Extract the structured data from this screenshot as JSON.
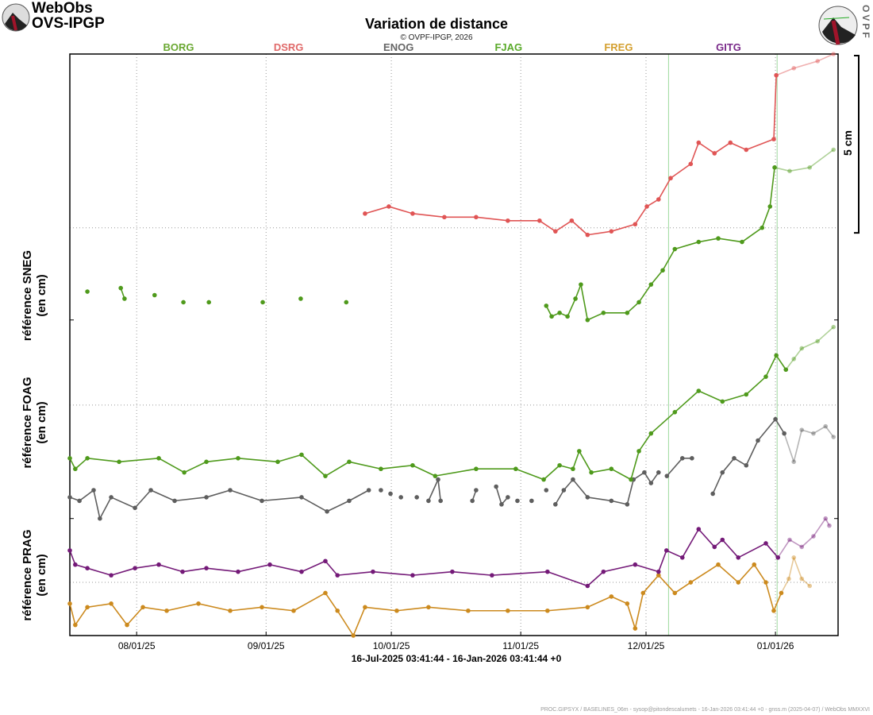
{
  "header": {
    "brand_line1": "WebObs",
    "brand_line2": "OVS-IPGP",
    "title": "Variation de distance",
    "copyright": "© OVPF-IPGP, 2026",
    "logo_right_text": "OVPF"
  },
  "footer": "PROC.GIPSYX / BASELINES_06m - sysop@pitondescalumets - 16-Jan-2026 03:41:44 +0 - gnss.m (2025-04-07) / WebObs MMXXVI",
  "chart_data": {
    "type": "line",
    "title": "Variation de distance",
    "xlabel": "16-Jul-2025 03:41:44 - 16-Jan-2026 03:41:44 +0",
    "x_units": "days since 16-Jul-2025",
    "xlim": [
      0,
      184
    ],
    "ylim": [
      0,
      16.4
    ],
    "y_units": "cm",
    "grid": true,
    "scale_bar": {
      "label": "5 cm",
      "value": 5
    },
    "x_ticks": [
      {
        "day": 16,
        "label": "08/01/25"
      },
      {
        "day": 47,
        "label": "09/01/25"
      },
      {
        "day": 77,
        "label": "10/01/25"
      },
      {
        "day": 108,
        "label": "11/01/25"
      },
      {
        "day": 138,
        "label": "12/01/25"
      },
      {
        "day": 169,
        "label": "01/01/26"
      }
    ],
    "event_lines_days": [
      143.4,
      169.4
    ],
    "y_grid_cm": [
      1.5,
      6.5,
      11.5,
      16.4
    ],
    "y_panel_ticks_cm": [
      3.3,
      8.9
    ],
    "panel_labels": [
      {
        "line1": "référence SNEG",
        "line2": "(en cm)",
        "center_cm": 9.6
      },
      {
        "line1": "référence FOAG",
        "line2": "(en cm)",
        "center_cm": 6.0
      },
      {
        "line1": "référence PRAG",
        "line2": "(en cm)",
        "center_cm": 1.7
      }
    ],
    "recent_from_day": 172,
    "series": [
      {
        "name": "BORG",
        "color": "#4f9a1c",
        "label_color": "#6aa832",
        "points": [
          [
            4.2,
            9.7
          ],
          null,
          [
            12.2,
            9.8
          ],
          [
            13.1,
            9.5
          ],
          null,
          [
            20.3,
            9.6
          ],
          null,
          [
            27.2,
            9.4
          ],
          null,
          [
            33.3,
            9.4
          ],
          null,
          [
            46.2,
            9.4
          ],
          null,
          [
            55.3,
            9.5
          ],
          null,
          [
            66.2,
            9.4
          ],
          null,
          [
            114.1,
            9.3
          ],
          [
            115.4,
            9.0
          ],
          [
            117.3,
            9.1
          ],
          [
            119.2,
            9.0
          ],
          [
            121.1,
            9.5
          ],
          [
            122.4,
            9.9
          ],
          [
            124,
            8.9
          ],
          [
            127.8,
            9.1
          ],
          [
            133.5,
            9.1
          ],
          [
            136.3,
            9.4
          ],
          [
            139.2,
            9.9
          ],
          [
            142,
            10.3
          ],
          [
            144.9,
            10.9
          ],
          [
            150.6,
            11.1
          ],
          [
            155.3,
            11.2
          ],
          [
            161,
            11.1
          ],
          [
            165.8,
            11.5
          ],
          [
            167.7,
            12.1
          ],
          [
            168.8,
            13.2
          ],
          [
            172.4,
            13.1
          ],
          [
            177.2,
            13.2
          ],
          [
            182.9,
            13.7
          ]
        ]
      },
      {
        "name": "DSRG",
        "color": "#e05555",
        "label_color": "#e06a6a",
        "points": [
          [
            70.7,
            11.9
          ],
          [
            76.4,
            12.1
          ],
          [
            82.1,
            11.9
          ],
          [
            89.7,
            11.8
          ],
          [
            97.3,
            11.8
          ],
          [
            104.9,
            11.7
          ],
          [
            112.5,
            11.7
          ],
          [
            116.3,
            11.4
          ],
          [
            120.2,
            11.7
          ],
          [
            124,
            11.3
          ],
          [
            129.7,
            11.4
          ],
          [
            135.4,
            11.6
          ],
          [
            138.2,
            12.1
          ],
          [
            141,
            12.3
          ],
          [
            143.9,
            12.9
          ],
          [
            148.7,
            13.3
          ],
          [
            150.6,
            13.9
          ],
          [
            154.4,
            13.6
          ],
          [
            158.2,
            13.9
          ],
          [
            162,
            13.7
          ],
          [
            168.6,
            14.0
          ],
          [
            169.2,
            15.8
          ],
          [
            173.4,
            16.0
          ],
          [
            179.1,
            16.2
          ],
          [
            182.9,
            16.4
          ]
        ]
      },
      {
        "name": "ENOG",
        "color": "#5e5e5e",
        "label_color": "#666666",
        "points": [
          [
            0,
            3.9
          ],
          [
            2.3,
            3.8
          ],
          [
            5.7,
            4.1
          ],
          [
            7.2,
            3.3
          ],
          [
            9.9,
            3.9
          ],
          [
            15.6,
            3.6
          ],
          [
            19.4,
            4.1
          ],
          [
            25.1,
            3.8
          ],
          [
            32.7,
            3.9
          ],
          [
            38.4,
            4.1
          ],
          [
            46,
            3.8
          ],
          [
            55.5,
            3.9
          ],
          [
            61.6,
            3.5
          ],
          [
            66.9,
            3.8
          ],
          [
            71.6,
            4.1
          ],
          null,
          [
            74.5,
            4.1
          ],
          null,
          [
            76.8,
            4.0
          ],
          null,
          [
            79.3,
            3.9
          ],
          null,
          [
            83.1,
            3.9
          ],
          null,
          [
            85.9,
            3.8
          ],
          [
            88.2,
            4.4
          ],
          [
            88.8,
            3.8
          ],
          null,
          [
            96.4,
            3.8
          ],
          [
            97.3,
            4.1
          ],
          null,
          [
            102.1,
            4.2
          ],
          [
            103.4,
            3.7
          ],
          [
            104.9,
            3.9
          ],
          null,
          [
            107.2,
            3.8
          ],
          null,
          [
            110.6,
            3.8
          ],
          null,
          [
            114.1,
            4.1
          ],
          null,
          [
            116.3,
            3.7
          ],
          [
            118.3,
            4.1
          ],
          [
            120.5,
            4.4
          ],
          [
            124,
            3.9
          ],
          [
            129.7,
            3.8
          ],
          [
            133.5,
            3.7
          ],
          [
            135,
            4.4
          ],
          [
            137.6,
            4.6
          ],
          [
            139.2,
            4.3
          ],
          [
            141,
            4.6
          ],
          null,
          [
            143,
            4.5
          ],
          [
            146.7,
            5.0
          ],
          [
            149,
            5.0
          ],
          null,
          [
            154,
            4.0
          ],
          [
            156.3,
            4.6
          ],
          [
            159.1,
            5.0
          ],
          [
            162,
            4.8
          ],
          [
            164.8,
            5.5
          ],
          [
            169,
            6.1
          ],
          [
            171.1,
            5.7
          ],
          [
            173.4,
            4.9
          ],
          [
            175.3,
            5.8
          ],
          [
            178.1,
            5.7
          ],
          [
            181,
            5.9
          ],
          [
            182.9,
            5.6
          ]
        ]
      },
      {
        "name": "FJAG",
        "color": "#4f9a1c",
        "label_color": "#5aaa2a",
        "points": [
          [
            0,
            5.0
          ],
          [
            1.3,
            4.7
          ],
          [
            4.2,
            5.0
          ],
          [
            11.8,
            4.9
          ],
          [
            21.3,
            5.0
          ],
          [
            27.4,
            4.6
          ],
          [
            32.7,
            4.9
          ],
          [
            40.3,
            5.0
          ],
          [
            49.8,
            4.9
          ],
          [
            55.5,
            5.1
          ],
          [
            61.2,
            4.5
          ],
          [
            66.9,
            4.9
          ],
          [
            74.5,
            4.7
          ],
          [
            82.1,
            4.8
          ],
          [
            87.5,
            4.5
          ],
          [
            97.3,
            4.7
          ],
          [
            106.8,
            4.7
          ],
          [
            113.5,
            4.4
          ],
          [
            117.3,
            4.8
          ],
          [
            120.5,
            4.7
          ],
          [
            122,
            5.2
          ],
          [
            124.9,
            4.6
          ],
          [
            129.7,
            4.7
          ],
          [
            134.4,
            4.4
          ],
          [
            136.3,
            5.2
          ],
          [
            139.2,
            5.7
          ],
          [
            144.9,
            6.3
          ],
          [
            150.6,
            6.9
          ],
          [
            156.3,
            6.6
          ],
          [
            162,
            6.8
          ],
          [
            166.7,
            7.3
          ],
          [
            169.2,
            7.9
          ],
          [
            171.5,
            7.5
          ],
          [
            173.4,
            7.8
          ],
          [
            175.3,
            8.1
          ],
          [
            179.1,
            8.3
          ],
          [
            182.9,
            8.7
          ]
        ]
      },
      {
        "name": "FREG",
        "color": "#cc8a1e",
        "label_color": "#d4a030",
        "points": [
          [
            0,
            0.9
          ],
          [
            1.3,
            0.3
          ],
          [
            4.2,
            0.8
          ],
          [
            9.9,
            0.9
          ],
          [
            13.7,
            0.3
          ],
          [
            17.5,
            0.8
          ],
          [
            23.2,
            0.7
          ],
          [
            30.8,
            0.9
          ],
          [
            38.4,
            0.7
          ],
          [
            46,
            0.8
          ],
          [
            53.6,
            0.7
          ],
          [
            61.2,
            1.2
          ],
          [
            64.1,
            0.7
          ],
          [
            67.9,
            0.0
          ],
          [
            70.7,
            0.8
          ],
          [
            78.3,
            0.7
          ],
          [
            85.9,
            0.8
          ],
          [
            95.4,
            0.7
          ],
          [
            104.9,
            0.7
          ],
          [
            114.4,
            0.7
          ],
          [
            124,
            0.8
          ],
          [
            129.7,
            1.1
          ],
          [
            133.5,
            0.9
          ],
          [
            135.4,
            0.2
          ],
          [
            137.3,
            1.2
          ],
          [
            141,
            1.7
          ],
          [
            144.9,
            1.2
          ],
          [
            148.7,
            1.5
          ],
          [
            155.3,
            2.0
          ],
          [
            160.1,
            1.5
          ],
          [
            163.9,
            2.0
          ],
          [
            166.7,
            1.5
          ],
          [
            168.6,
            0.7
          ],
          [
            170.4,
            1.2
          ],
          [
            172.2,
            1.6
          ],
          [
            173.4,
            2.2
          ],
          [
            175.3,
            1.6
          ],
          [
            177.2,
            1.4
          ]
        ]
      },
      {
        "name": "GITG",
        "color": "#741a78",
        "label_color": "#7a2a8a",
        "points": [
          [
            0,
            2.4
          ],
          [
            1.3,
            2.0
          ],
          [
            4.2,
            1.9
          ],
          [
            9.9,
            1.7
          ],
          [
            15.6,
            1.9
          ],
          [
            21.3,
            2.0
          ],
          [
            27,
            1.8
          ],
          [
            32.7,
            1.9
          ],
          [
            40.3,
            1.8
          ],
          [
            47.9,
            2.0
          ],
          [
            55.5,
            1.8
          ],
          [
            61.2,
            2.1
          ],
          [
            64.1,
            1.7
          ],
          [
            72.6,
            1.8
          ],
          [
            82.1,
            1.7
          ],
          [
            91.6,
            1.8
          ],
          [
            101.1,
            1.7
          ],
          [
            114.4,
            1.8
          ],
          [
            124,
            1.4
          ],
          [
            127.8,
            1.8
          ],
          [
            135.4,
            2.0
          ],
          [
            141,
            1.8
          ],
          [
            142.9,
            2.4
          ],
          [
            146.7,
            2.2
          ],
          [
            150.6,
            3.0
          ],
          [
            154.4,
            2.5
          ],
          [
            156.3,
            2.7
          ],
          [
            160.1,
            2.2
          ],
          [
            166.7,
            2.6
          ],
          [
            169.6,
            2.2
          ],
          [
            172.4,
            2.7
          ],
          [
            175.3,
            2.5
          ],
          [
            178.1,
            2.8
          ],
          [
            181,
            3.3
          ],
          [
            181.9,
            3.1
          ]
        ]
      }
    ]
  }
}
